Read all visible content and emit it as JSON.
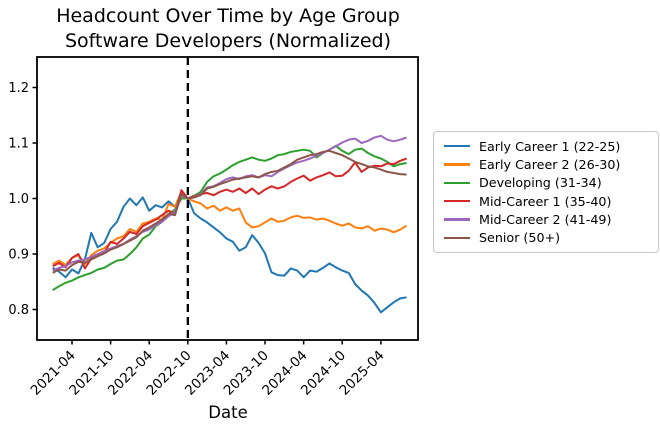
{
  "figure": {
    "title_line1": "Headcount Over Time by Age Group",
    "title_line2": "Software Developers (Normalized)"
  },
  "chart_data": {
    "type": "line",
    "title": "Headcount Over Time by Age Group",
    "subtitle": "Software Developers (Normalized)",
    "xlabel": "Date",
    "ylabel": "",
    "x_frequency": "monthly",
    "x_start": "2021-01",
    "x_end": "2025-08",
    "x_tick_labels": [
      "2021-04",
      "2021-10",
      "2022-04",
      "2022-10",
      "2023-04",
      "2023-10",
      "2024-04",
      "2024-10",
      "2025-04"
    ],
    "y_tick_labels": [
      "0.8",
      "0.9",
      "1.0",
      "1.1",
      "1.2"
    ],
    "y_ticks": [
      0.8,
      0.9,
      1.0,
      1.1,
      1.2
    ],
    "ylim": [
      0.745,
      1.255
    ],
    "xlim_month_offsets": [
      -2.44,
      56.77
    ],
    "grid": false,
    "legend_position": "right-outside",
    "vline": {
      "x": "2022-10",
      "style": "dashed",
      "color": "#000000"
    },
    "series": [
      {
        "name": "Early Career 1 (22-25)",
        "color": "#1f77b4",
        "values": [
          0.875,
          0.868,
          0.858,
          0.872,
          0.865,
          0.89,
          0.938,
          0.912,
          0.92,
          0.945,
          0.958,
          0.985,
          1.0,
          0.988,
          1.002,
          0.978,
          0.988,
          0.984,
          0.995,
          0.985,
          1.01,
          1.0,
          0.973,
          0.964,
          0.957,
          0.948,
          0.939,
          0.928,
          0.922,
          0.906,
          0.912,
          0.934,
          0.92,
          0.901,
          0.867,
          0.862,
          0.861,
          0.874,
          0.87,
          0.858,
          0.87,
          0.868,
          0.875,
          0.883,
          0.876,
          0.87,
          0.866,
          0.846,
          0.834,
          0.825,
          0.812,
          0.795,
          0.804,
          0.813,
          0.82,
          0.822
        ]
      },
      {
        "name": "Early Career 2 (26-30)",
        "color": "#ff7f0e",
        "values": [
          0.882,
          0.888,
          0.88,
          0.893,
          0.898,
          0.882,
          0.898,
          0.906,
          0.91,
          0.92,
          0.928,
          0.932,
          0.945,
          0.94,
          0.955,
          0.958,
          0.964,
          0.962,
          0.99,
          0.985,
          1.012,
          1.0,
          0.995,
          0.991,
          0.982,
          0.987,
          0.978,
          0.984,
          0.978,
          0.982,
          0.957,
          0.948,
          0.95,
          0.957,
          0.964,
          0.958,
          0.96,
          0.966,
          0.969,
          0.965,
          0.966,
          0.962,
          0.964,
          0.96,
          0.955,
          0.951,
          0.955,
          0.948,
          0.946,
          0.95,
          0.942,
          0.946,
          0.944,
          0.939,
          0.944,
          0.951
        ]
      },
      {
        "name": "Developing (31-34)",
        "color": "#2ca02c",
        "values": [
          0.835,
          0.842,
          0.848,
          0.852,
          0.858,
          0.862,
          0.866,
          0.872,
          0.875,
          0.882,
          0.888,
          0.89,
          0.9,
          0.912,
          0.928,
          0.935,
          0.95,
          0.958,
          0.972,
          0.98,
          1.0,
          1.0,
          1.005,
          1.012,
          1.03,
          1.04,
          1.045,
          1.052,
          1.06,
          1.066,
          1.07,
          1.074,
          1.07,
          1.068,
          1.072,
          1.078,
          1.08,
          1.084,
          1.086,
          1.088,
          1.086,
          1.074,
          1.082,
          1.088,
          1.095,
          1.086,
          1.08,
          1.088,
          1.09,
          1.082,
          1.076,
          1.072,
          1.066,
          1.058,
          1.062,
          1.064
        ]
      },
      {
        "name": "Mid-Career 1 (35-40)",
        "color": "#d62728",
        "values": [
          0.878,
          0.884,
          0.876,
          0.893,
          0.9,
          0.874,
          0.892,
          0.896,
          0.902,
          0.922,
          0.918,
          0.928,
          0.94,
          0.936,
          0.95,
          0.956,
          0.962,
          0.97,
          0.978,
          0.972,
          1.015,
          1.0,
          1.004,
          1.008,
          1.01,
          1.006,
          1.012,
          1.016,
          1.012,
          1.018,
          1.01,
          1.018,
          1.008,
          1.016,
          1.022,
          1.018,
          1.022,
          1.03,
          1.036,
          1.041,
          1.032,
          1.038,
          1.042,
          1.047,
          1.04,
          1.041,
          1.05,
          1.065,
          1.048,
          1.056,
          1.059,
          1.058,
          1.063,
          1.062,
          1.068,
          1.072
        ]
      },
      {
        "name": "Mid-Career 2 (41-49)",
        "color": "#9e67bd",
        "values": [
          0.87,
          0.875,
          0.878,
          0.885,
          0.888,
          0.89,
          0.895,
          0.9,
          0.905,
          0.91,
          0.914,
          0.918,
          0.926,
          0.932,
          0.94,
          0.944,
          0.952,
          0.958,
          0.968,
          0.976,
          1.005,
          1.0,
          1.002,
          1.008,
          1.02,
          1.022,
          1.028,
          1.035,
          1.038,
          1.035,
          1.04,
          1.042,
          1.038,
          1.042,
          1.04,
          1.048,
          1.054,
          1.06,
          1.065,
          1.068,
          1.072,
          1.077,
          1.082,
          1.088,
          1.094,
          1.101,
          1.106,
          1.108,
          1.1,
          1.104,
          1.11,
          1.113,
          1.106,
          1.103,
          1.106,
          1.11
        ]
      },
      {
        "name": "Senior (50+)",
        "color": "#8c564b",
        "values": [
          0.866,
          0.872,
          0.87,
          0.88,
          0.886,
          0.884,
          0.89,
          0.896,
          0.901,
          0.908,
          0.912,
          0.918,
          0.924,
          0.93,
          0.942,
          0.948,
          0.955,
          0.962,
          0.972,
          0.97,
          1.008,
          1.0,
          1.002,
          1.006,
          1.018,
          1.021,
          1.026,
          1.03,
          1.034,
          1.036,
          1.038,
          1.04,
          1.038,
          1.044,
          1.048,
          1.05,
          1.056,
          1.062,
          1.07,
          1.074,
          1.078,
          1.08,
          1.084,
          1.086,
          1.082,
          1.078,
          1.072,
          1.066,
          1.062,
          1.058,
          1.056,
          1.052,
          1.048,
          1.046,
          1.044,
          1.043
        ]
      }
    ]
  }
}
